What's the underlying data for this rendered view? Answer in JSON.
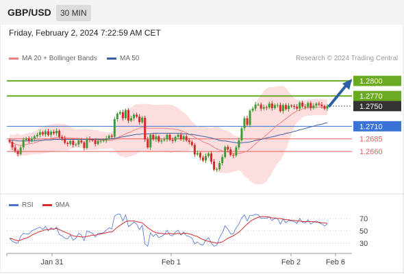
{
  "header": {
    "symbol": "GBP/USD",
    "timeframe": "30 MIN"
  },
  "datetime": "Friday, February 2, 2024 7:22:59 AM CET",
  "legend_main": [
    {
      "label": "MA 20 + Bollinger Bands",
      "color": "#f08080"
    },
    {
      "label": "MA 50",
      "color": "#3a5fa0"
    }
  ],
  "credit": "Research © 2024 Trading Central",
  "colors": {
    "up": "#3f9a36",
    "down": "#d42a2a",
    "resistance": "#6aaa22",
    "pivot": "#3b73d6",
    "support": "#e25d5d",
    "last": "#333333",
    "band": "#fbd6d6",
    "arrow": "#2d5fa7"
  },
  "chart_data": [
    {
      "type": "candlestick",
      "x_labels": [
        "Jan 31",
        "Feb 1",
        "Feb 2",
        "Feb 6"
      ],
      "ylim": [
        1.258,
        1.283
      ],
      "levels": [
        {
          "value": 1.28,
          "label": "1.2800",
          "kind": "resistance"
        },
        {
          "value": 1.277,
          "label": "1.2770",
          "kind": "resistance"
        },
        {
          "value": 1.275,
          "label": "1.2750",
          "kind": "last"
        },
        {
          "value": 1.271,
          "label": "1.2710",
          "kind": "pivot"
        },
        {
          "value": 1.2685,
          "label": "1.2685",
          "kind": "support"
        },
        {
          "value": 1.266,
          "label": "1.2660",
          "kind": "support"
        }
      ],
      "close": [
        1.2679,
        1.2668,
        1.2661,
        1.2655,
        1.2668,
        1.2683,
        1.2686,
        1.2681,
        1.2685,
        1.269,
        1.2693,
        1.2698,
        1.2694,
        1.27,
        1.2693,
        1.2699,
        1.2696,
        1.2701,
        1.2689,
        1.2686,
        1.2677,
        1.2675,
        1.2681,
        1.2673,
        1.2674,
        1.2682,
        1.2678,
        1.2667,
        1.2685,
        1.2683,
        1.2682,
        1.2675,
        1.2681,
        1.2681,
        1.2682,
        1.2686,
        1.2691,
        1.2689,
        1.2724,
        1.2735,
        1.2738,
        1.2726,
        1.2742,
        1.2721,
        1.2726,
        1.2733,
        1.2729,
        1.2718,
        1.2727,
        1.2684,
        1.2668,
        1.2693,
        1.2684,
        1.269,
        1.268,
        1.2682,
        1.2684,
        1.2693,
        1.2683,
        1.2681,
        1.2689,
        1.2693,
        1.2684,
        1.269,
        1.2682,
        1.2679,
        1.2673,
        1.2654,
        1.2657,
        1.2648,
        1.2642,
        1.2651,
        1.2656,
        1.264,
        1.2624,
        1.2625,
        1.2637,
        1.2649,
        1.2669,
        1.2664,
        1.2653,
        1.2652,
        1.2668,
        1.2682,
        1.2706,
        1.2726,
        1.2713,
        1.2741,
        1.2745,
        1.2753,
        1.2753,
        1.2745,
        1.2748,
        1.2747,
        1.2755,
        1.2746,
        1.2752,
        1.2752,
        1.274,
        1.2752,
        1.2744,
        1.2751,
        1.275,
        1.2749,
        1.2745,
        1.2757,
        1.2749,
        1.2748,
        1.2756,
        1.2746,
        1.2751,
        1.2755,
        1.2753,
        1.275,
        1.2745,
        1.275
      ],
      "ma20": [
        1.2678,
        1.2677,
        1.2675,
        1.2673,
        1.2672,
        1.2673,
        1.2674,
        1.2675,
        1.2676,
        1.2677,
        1.2679,
        1.2681,
        1.2682,
        1.2684,
        1.2685,
        1.2686,
        1.2687,
        1.2688,
        1.2688,
        1.2688,
        1.2688,
        1.2687,
        1.2687,
        1.2686,
        1.2686,
        1.2686,
        1.2685,
        1.2684,
        1.2684,
        1.2684,
        1.2683,
        1.2683,
        1.2683,
        1.2682,
        1.2682,
        1.2682,
        1.2682,
        1.2682,
        1.2684,
        1.2687,
        1.269,
        1.2692,
        1.2695,
        1.2697,
        1.2699,
        1.2702,
        1.2704,
        1.2706,
        1.2708,
        1.2707,
        1.2706,
        1.2706,
        1.2706,
        1.2706,
        1.2706,
        1.2706,
        1.2706,
        1.2706,
        1.2705,
        1.2705,
        1.2704,
        1.2703,
        1.2701,
        1.2699,
        1.2697,
        1.2694,
        1.2692,
        1.2688,
        1.2685,
        1.2683,
        1.2679,
        1.2677,
        1.2675,
        1.2672,
        1.2668,
        1.2665,
        1.2663,
        1.2661,
        1.266,
        1.2659,
        1.2658,
        1.2656,
        1.2656,
        1.2656,
        1.2657,
        1.2659,
        1.2661,
        1.2665,
        1.267,
        1.2675,
        1.268,
        1.2684,
        1.2688,
        1.2693,
        1.2698,
        1.2703,
        1.2708,
        1.2713,
        1.2716,
        1.2721,
        1.2725,
        1.2729,
        1.2733,
        1.2737,
        1.274,
        1.2742,
        1.2744,
        1.2746,
        1.2747,
        1.2747,
        1.2748,
        1.2748,
        1.2748,
        1.2748,
        1.2748,
        1.2748
      ],
      "ma50": [
        1.2682,
        1.2682,
        1.2682,
        1.2681,
        1.2681,
        1.2681,
        1.2681,
        1.2681,
        1.2681,
        1.2681,
        1.2682,
        1.2682,
        1.2682,
        1.2683,
        1.2683,
        1.2683,
        1.2684,
        1.2684,
        1.2684,
        1.2684,
        1.2684,
        1.2684,
        1.2684,
        1.2684,
        1.2684,
        1.2684,
        1.2684,
        1.2684,
        1.2684,
        1.2684,
        1.2684,
        1.2684,
        1.2684,
        1.2684,
        1.2684,
        1.2684,
        1.2685,
        1.2685,
        1.2686,
        1.2687,
        1.2688,
        1.2689,
        1.269,
        1.2691,
        1.2692,
        1.2693,
        1.2694,
        1.2694,
        1.2695,
        1.2695,
        1.2695,
        1.2695,
        1.2696,
        1.2696,
        1.2696,
        1.2696,
        1.2696,
        1.2696,
        1.2696,
        1.2696,
        1.2696,
        1.2696,
        1.2695,
        1.2695,
        1.2695,
        1.2694,
        1.2694,
        1.2693,
        1.2692,
        1.2691,
        1.269,
        1.2689,
        1.2688,
        1.2687,
        1.2685,
        1.2684,
        1.2682,
        1.2681,
        1.2681,
        1.268,
        1.2679,
        1.2678,
        1.2677,
        1.2677,
        1.2677,
        1.2678,
        1.2678,
        1.2679,
        1.268,
        1.2682,
        1.2683,
        1.2684,
        1.2685,
        1.2687,
        1.2688,
        1.2689,
        1.269,
        1.2692,
        1.2693,
        1.2694,
        1.2696,
        1.2697,
        1.2698,
        1.27,
        1.2701,
        1.2703,
        1.2704,
        1.2706,
        1.2707,
        1.2709,
        1.271,
        1.2712,
        1.2713,
        1.2714,
        1.2716,
        1.2717
      ]
    },
    {
      "type": "line",
      "legend": [
        {
          "label": "RSI",
          "color": "#4a6fd4"
        },
        {
          "label": "9MA",
          "color": "#d42a2a"
        }
      ],
      "ylim": [
        20,
        80
      ],
      "y_ticks": [
        70,
        50,
        30
      ],
      "rsi": [
        38,
        33,
        31,
        30,
        41,
        46,
        45,
        45,
        50,
        52,
        54,
        56,
        52,
        57,
        50,
        55,
        52,
        56,
        44,
        42,
        38,
        37,
        43,
        35,
        38,
        46,
        43,
        34,
        50,
        48,
        46,
        40,
        46,
        46,
        47,
        51,
        55,
        53,
        74,
        77,
        77,
        66,
        76,
        57,
        60,
        64,
        61,
        52,
        59,
        29,
        25,
        47,
        41,
        45,
        39,
        41,
        44,
        51,
        43,
        42,
        48,
        51,
        43,
        48,
        42,
        41,
        38,
        29,
        32,
        28,
        27,
        35,
        39,
        30,
        25,
        27,
        39,
        47,
        58,
        53,
        45,
        45,
        55,
        61,
        71,
        76,
        66,
        75,
        75,
        77,
        76,
        70,
        71,
        70,
        73,
        67,
        70,
        70,
        61,
        69,
        63,
        67,
        66,
        65,
        62,
        70,
        64,
        63,
        68,
        61,
        64,
        66,
        63,
        61,
        58,
        61
      ],
      "rsi9": [
        38,
        37,
        35,
        34,
        35,
        37,
        38,
        40,
        43,
        45,
        47,
        49,
        50,
        52,
        52,
        53,
        53,
        54,
        52,
        50,
        48,
        46,
        44,
        42,
        41,
        41,
        40,
        40,
        41,
        42,
        43,
        43,
        44,
        45,
        46,
        47,
        48,
        48,
        52,
        56,
        59,
        62,
        65,
        66,
        66,
        66,
        65,
        64,
        63,
        59,
        55,
        52,
        49,
        47,
        46,
        46,
        45,
        45,
        46,
        45,
        45,
        46,
        45,
        46,
        46,
        45,
        44,
        42,
        41,
        38,
        36,
        34,
        33,
        32,
        31,
        30,
        31,
        32,
        35,
        38,
        40,
        42,
        45,
        48,
        52,
        57,
        61,
        65,
        68,
        70,
        72,
        73,
        73,
        73,
        72,
        71,
        71,
        70,
        70,
        69,
        68,
        68,
        67,
        67,
        66,
        66,
        65,
        65,
        65,
        65,
        65,
        64,
        64,
        63,
        63,
        62
      ]
    }
  ]
}
